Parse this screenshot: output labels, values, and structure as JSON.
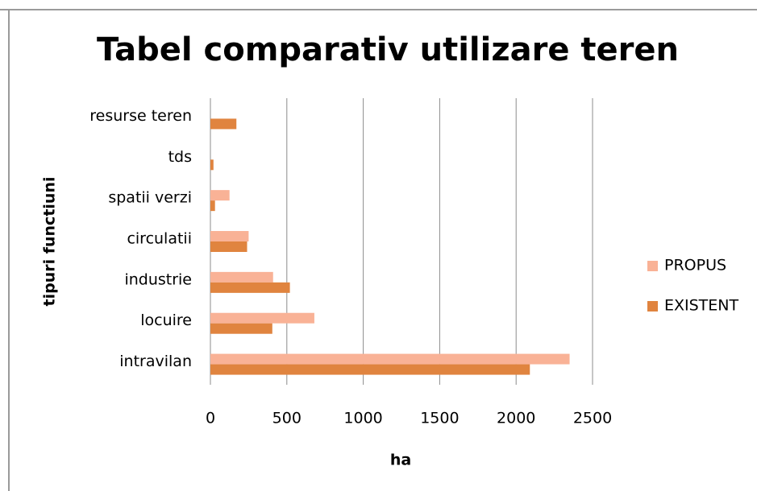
{
  "chart_data": {
    "type": "barh",
    "title": "Tabel comparativ utilizare teren",
    "xlabel": "ha",
    "ylabel": "tipuri functiuni",
    "categories": [
      "intravilan",
      "locuire",
      "industrie",
      "circulatii",
      "spatii verzi",
      "tds",
      "resurse teren"
    ],
    "series": [
      {
        "name": "PROPUS",
        "color": "#f9b296",
        "values": [
          2350,
          680,
          410,
          250,
          125,
          0,
          0
        ]
      },
      {
        "name": "EXISTENT",
        "color": "#e0843f",
        "values": [
          2090,
          405,
          520,
          240,
          30,
          20,
          170
        ]
      }
    ],
    "xlim": [
      0,
      2500
    ],
    "xticks": [
      0,
      500,
      1000,
      1500,
      2000,
      2500
    ],
    "grid": true,
    "legend": "right"
  }
}
